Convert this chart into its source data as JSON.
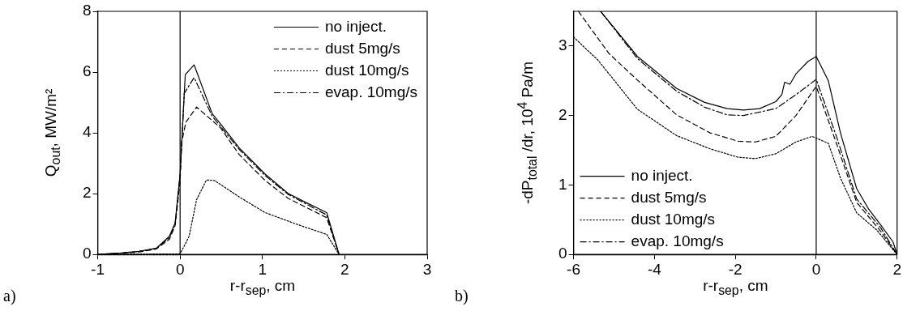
{
  "chart_data": [
    {
      "type": "line",
      "xlabel": "r-r$_{sep}$, cm",
      "ylabel": "Q$_{out}$, MW/m²",
      "xlim": [
        -1,
        3
      ],
      "ylim": [
        0,
        8
      ],
      "xticks": [
        -1,
        0,
        1,
        2,
        3
      ],
      "yticks": [
        0,
        2,
        4,
        6,
        8
      ],
      "legend": "top right",
      "annotations": [
        "a)"
      ],
      "ref_lines": [
        {
          "axis": "x",
          "value": 0,
          "color": "#000000"
        }
      ],
      "series": [
        {
          "name": "no inject.",
          "color": "#000000",
          "line_style": "solid",
          "x": [
            -1,
            -0.71,
            -0.5,
            -0.29,
            -0.13,
            -0.06,
            0,
            0.063,
            0.17,
            0.39,
            0.49,
            0.72,
            1.03,
            1.31,
            1.52,
            1.78,
            1.93
          ],
          "values": [
            0,
            0.05,
            0.1,
            0.2,
            0.6,
            1.04,
            2.65,
            5.92,
            6.24,
            4.63,
            4.3,
            3.5,
            2.65,
            2.01,
            1.72,
            1.38,
            0
          ]
        },
        {
          "name": "dust 5mg/s",
          "color": "#000000",
          "line_style": "dashed",
          "x": [
            -1,
            -0.71,
            -0.5,
            -0.29,
            -0.13,
            -0.06,
            0,
            0.02,
            0.07,
            0.2,
            0.49,
            0.72,
            1.03,
            1.31,
            1.78,
            1.93
          ],
          "values": [
            0,
            0.04,
            0.08,
            0.18,
            0.5,
            0.95,
            2.4,
            3.7,
            4.35,
            4.85,
            4.17,
            3.28,
            2.44,
            1.85,
            1.21,
            0
          ]
        },
        {
          "name": "dust 10mg/s",
          "color": "#000000",
          "line_style": "dotted",
          "x": [
            -1,
            0,
            0.066,
            0.11,
            0.2,
            0.32,
            0.42,
            0.72,
            1.03,
            1.41,
            1.78,
            1.93
          ],
          "values": [
            0,
            0.02,
            0.36,
            0.6,
            1.8,
            2.45,
            2.43,
            1.89,
            1.38,
            1.0,
            0.66,
            0
          ]
        },
        {
          "name": "evap. 10mg/s",
          "color": "#000000",
          "line_style": "dashdot",
          "x": [
            -1,
            -0.71,
            -0.5,
            -0.29,
            -0.13,
            -0.06,
            0,
            0.05,
            0.17,
            0.39,
            0.72,
            1.03,
            1.31,
            1.78,
            1.93
          ],
          "values": [
            0,
            0.05,
            0.1,
            0.2,
            0.55,
            1.0,
            2.6,
            5.3,
            5.82,
            4.55,
            3.45,
            2.6,
            1.98,
            1.3,
            0
          ]
        }
      ]
    },
    {
      "type": "line",
      "xlabel": "r-r$_{sep}$, cm",
      "ylabel": "-dP$_{total}$ /dr, 10$^{4}$ Pa/m",
      "xlim": [
        -6,
        2
      ],
      "ylim": [
        0,
        3.5
      ],
      "xticks": [
        -6,
        -4,
        -2,
        0,
        2
      ],
      "yticks": [
        0,
        1,
        2,
        3
      ],
      "legend": "bottom left",
      "annotations": [
        "b)"
      ],
      "ref_lines": [
        {
          "axis": "x",
          "value": 0,
          "color": "#000000"
        }
      ],
      "series": [
        {
          "name": "no inject.",
          "color": "#000000",
          "line_style": "solid",
          "x": [
            -5.33,
            -4.42,
            -3.45,
            -2.76,
            -2.2,
            -1.8,
            -1.4,
            -1,
            -0.85,
            -0.78,
            -0.65,
            -0.5,
            -0.2,
            0,
            0.3,
            0.6,
            1,
            1.3,
            1.6,
            1.9,
            2
          ],
          "values": [
            3.5,
            2.85,
            2.39,
            2.19,
            2.1,
            2.08,
            2.1,
            2.2,
            2.3,
            2.48,
            2.45,
            2.6,
            2.78,
            2.85,
            2.5,
            1.75,
            0.95,
            0.65,
            0.42,
            0.18,
            0
          ]
        },
        {
          "name": "dust 5mg/s",
          "color": "#000000",
          "line_style": "dashed",
          "x": [
            -5.88,
            -5.12,
            -4.42,
            -3.45,
            -2.62,
            -1.93,
            -1.5,
            -1,
            -0.5,
            0,
            0.5,
            1,
            1.6,
            2
          ],
          "values": [
            3.5,
            2.89,
            2.51,
            2.01,
            1.75,
            1.63,
            1.62,
            1.7,
            2.0,
            2.42,
            1.6,
            0.75,
            0.33,
            0
          ]
        },
        {
          "name": "dust 10mg/s",
          "color": "#000000",
          "line_style": "dotted",
          "x": [
            -6,
            -5.4,
            -4.42,
            -3.45,
            -2.62,
            -1.93,
            -1.5,
            -1,
            -0.5,
            -0.1,
            0.3,
            0.6,
            1,
            1.5,
            2
          ],
          "values": [
            3.13,
            2.8,
            2.09,
            1.71,
            1.52,
            1.4,
            1.38,
            1.45,
            1.62,
            1.7,
            1.6,
            1.1,
            0.6,
            0.35,
            0
          ]
        },
        {
          "name": "evap. 10mg/s",
          "color": "#000000",
          "line_style": "dashdot",
          "x": [
            -5.33,
            -4.42,
            -3.45,
            -2.76,
            -2.2,
            -1.8,
            -1,
            -0.5,
            0,
            0.5,
            1,
            1.6,
            2
          ],
          "values": [
            3.5,
            2.82,
            2.35,
            2.12,
            2.01,
            2.0,
            2.1,
            2.3,
            2.52,
            1.7,
            0.8,
            0.38,
            0
          ]
        }
      ]
    }
  ]
}
